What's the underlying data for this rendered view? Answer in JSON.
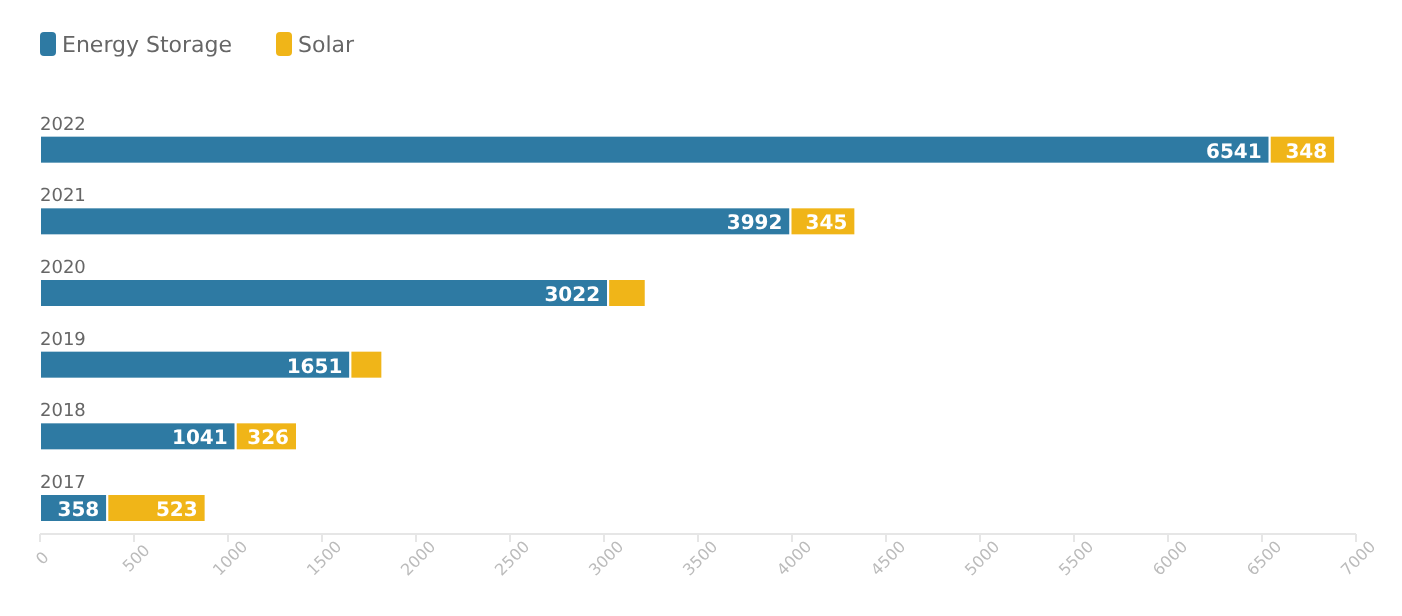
{
  "chart_data": {
    "type": "bar",
    "orientation": "horizontal",
    "stacked": true,
    "legend": "top left",
    "categories": [
      "2022",
      "2021",
      "2020",
      "2019",
      "2018",
      "2017"
    ],
    "series": [
      {
        "name": "Energy Storage",
        "color": "#2e7aa3",
        "values": [
          6541,
          3992,
          3022,
          1651,
          1041,
          358
        ],
        "value_labels": [
          "6541",
          "3992",
          "3022",
          "1651",
          "1041",
          "358"
        ]
      },
      {
        "name": "Solar",
        "color": "#f0b518",
        "values": [
          348,
          345,
          200,
          170,
          326,
          523
        ],
        "value_labels": [
          "348",
          "345",
          null,
          null,
          "326",
          "523"
        ]
      }
    ],
    "xlim": [
      0,
      7000
    ],
    "xticks": [
      0,
      500,
      1000,
      1500,
      2000,
      2500,
      3000,
      3500,
      4000,
      4500,
      5000,
      5500,
      6000,
      6500,
      7000
    ],
    "grid": false
  }
}
